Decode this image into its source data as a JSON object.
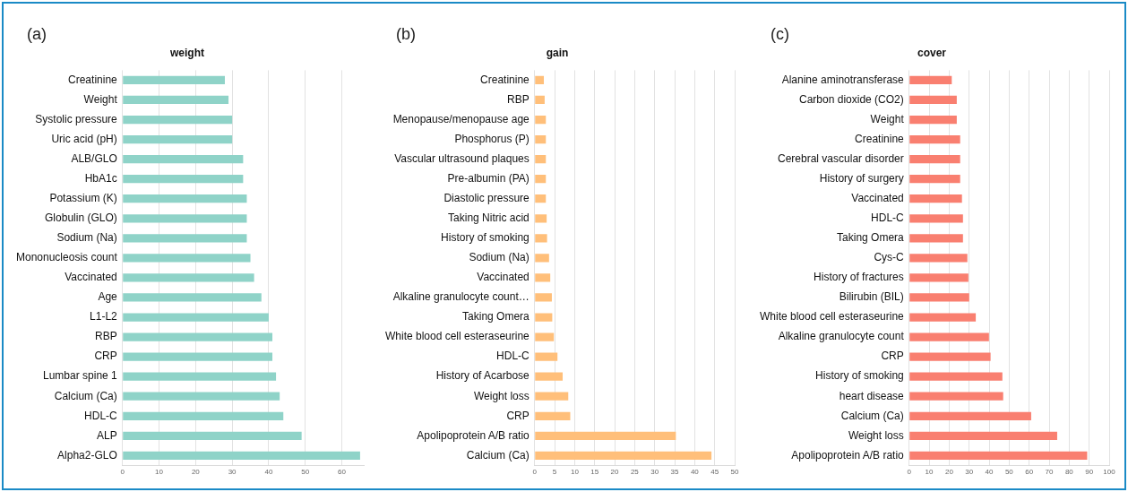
{
  "chart_data": [
    {
      "type": "bar",
      "orientation": "horizontal",
      "title": "weight",
      "annotations": [
        "(a)"
      ],
      "color": "#8fd3c8",
      "grid": "x",
      "categories": [
        "Creatinine",
        "Weight",
        "Systolic pressure",
        "Uric acid (pH)",
        "ALB/GLO",
        "HbA1c",
        "Potassium (K)",
        "Globulin (GLO)",
        "Sodium (Na)",
        "Mononucleosis count",
        "Vaccinated",
        "Age",
        "L1-L2",
        "RBP",
        "CRP",
        "Lumbar spine 1",
        "Calcium (Ca)",
        "HDL-C",
        "ALP",
        "Alpha2-GLO"
      ],
      "values": [
        28,
        29,
        30,
        30,
        33,
        33,
        34,
        34,
        34,
        35,
        36,
        38,
        40,
        41,
        41,
        42,
        43,
        44,
        49,
        65
      ],
      "xlim": [
        0,
        66
      ],
      "xticks": [
        0,
        10,
        20,
        30,
        40,
        50,
        60
      ]
    },
    {
      "type": "bar",
      "orientation": "horizontal",
      "title": "gain",
      "annotations": [
        "(b)"
      ],
      "color": "#ffbf7a",
      "grid": "x",
      "categories": [
        "Creatinine",
        "RBP",
        "Menopause/menopause age",
        "Phosphorus (P)",
        "Vascular ultrasound plaques",
        "Pre-albumin (PA)",
        "Diastolic pressure",
        "Taking Nitric acid",
        "History of smoking",
        "Sodium (Na)",
        "Vaccinated",
        "Alkaline granulocyte count…",
        "Taking Omera",
        "White blood cell esteraseurine",
        "HDL-C",
        "History of Acarbose",
        "Weight loss",
        "CRP",
        "Apolipoprotein A/B ratio",
        "Calcium (Ca)"
      ],
      "values": [
        2.3,
        2.5,
        2.8,
        2.8,
        2.8,
        2.8,
        2.8,
        3.0,
        3.1,
        3.6,
        3.9,
        4.3,
        4.4,
        4.8,
        5.7,
        7.0,
        8.4,
        8.9,
        35.3,
        44.2
      ],
      "xlim": [
        0,
        50
      ],
      "xticks": [
        0,
        5,
        10,
        15,
        20,
        25,
        30,
        35,
        40,
        45,
        50
      ]
    },
    {
      "type": "bar",
      "orientation": "horizontal",
      "title": "cover",
      "annotations": [
        "(c)"
      ],
      "color": "#f97f70",
      "grid": "x",
      "categories": [
        "Alanine aminotransferase",
        "Carbon dioxide (CO2)",
        "Weight",
        "Creatinine",
        "Cerebral vascular disorder",
        "History of surgery",
        "Vaccinated",
        "HDL-C",
        "Taking Omera",
        "Cys-C",
        "History of fractures",
        "Bilirubin (BIL)",
        "White blood cell esteraseurine",
        "Alkaline granulocyte count",
        "CRP",
        "History of smoking",
        "heart disease",
        "Calcium (Ca)",
        "Weight loss",
        "Apolipoprotein A/B ratio"
      ],
      "values": [
        21.3,
        23.8,
        23.8,
        25.5,
        25.5,
        25.5,
        26.4,
        26.9,
        26.9,
        29.1,
        29.6,
        30,
        33.3,
        39.9,
        40.7,
        46.6,
        47,
        61,
        74,
        89
      ],
      "xlim": [
        0,
        100
      ],
      "xticks": [
        0,
        10,
        20,
        30,
        40,
        50,
        60,
        70,
        80,
        90,
        100
      ]
    }
  ]
}
